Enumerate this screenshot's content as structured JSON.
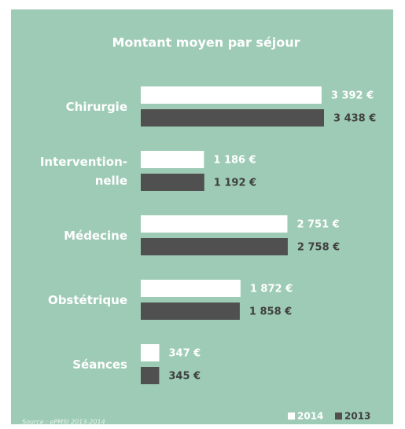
{
  "chart_data": {
    "type": "hbar",
    "title": "Montant moyen par séjour",
    "categories": [
      "Chirurgie",
      "Intervention-\nnelle",
      "Médecine",
      "Obstétrique",
      "Séances"
    ],
    "series": [
      {
        "name": "2014",
        "color": "#ffffff",
        "values": [
          3392,
          1186,
          2751,
          1872,
          347
        ],
        "value_labels": [
          "3 392 €",
          "1 186 €",
          "2 751 €",
          "1 872 €",
          "347 €"
        ]
      },
      {
        "name": "2013",
        "color": "#505050",
        "values": [
          3438,
          1192,
          2758,
          1858,
          345
        ],
        "value_labels": [
          "3 438 €",
          "1 192 €",
          "2 758 €",
          "1 858 €",
          "345 €"
        ]
      }
    ],
    "source": "Source : ePMSI 2013-2014"
  }
}
